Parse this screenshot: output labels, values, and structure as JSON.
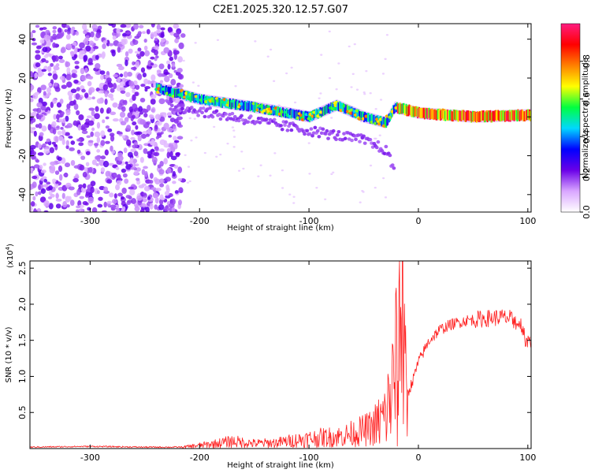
{
  "title": "C2E1.2025.320.12.57.G07",
  "chart_data": [
    {
      "type": "heatmap",
      "xlabel": "Height of straight line (km)",
      "ylabel": "Frequency (Hz)",
      "xlim": [
        -355,
        103
      ],
      "ylim": [
        -49,
        48
      ],
      "xticks": [
        -300,
        -200,
        -100,
        0,
        100
      ],
      "yticks": [
        -40,
        -20,
        0,
        20,
        40
      ],
      "colorbar": {
        "label": "Normalized spectral amplitude",
        "range": [
          0.0,
          1.0
        ],
        "ticks": [
          0.0,
          0.2,
          0.4,
          0.6,
          0.8
        ],
        "tick_labels": [
          "0.0",
          "0.2",
          "0.4",
          "0.6",
          "0.8"
        ],
        "colormap": [
          "#ffffff",
          "#d9a6ff",
          "#6a00e8",
          "#0000ff",
          "#00d8ff",
          "#00ff40",
          "#ffff00",
          "#ff8000",
          "#ff0000",
          "#ff1c80"
        ]
      },
      "features": [
        {
          "name": "noise region",
          "x_range": [
            -355,
            -215
          ],
          "freq_range": [
            -49,
            48
          ],
          "amplitude": 0.1
        },
        {
          "name": "doppler track",
          "points": [
            [
              -240,
              15
            ],
            [
              -200,
              9
            ],
            [
              -150,
              5
            ],
            [
              -100,
              0
            ],
            [
              -75,
              6
            ],
            [
              -50,
              0
            ],
            [
              -30,
              -3
            ],
            [
              -22,
              5
            ],
            [
              0,
              2
            ],
            [
              50,
              0
            ],
            [
              103,
              1
            ]
          ],
          "amplitude_range": [
            0.25,
            1.0
          ]
        },
        {
          "name": "low-frequency tail",
          "points": [
            [
              -230,
              6
            ],
            [
              -150,
              -2
            ],
            [
              -100,
              -7
            ],
            [
              -50,
              -12
            ],
            [
              -30,
              -17
            ],
            [
              -22,
              -27
            ]
          ],
          "amplitude": 0.15
        }
      ]
    },
    {
      "type": "line",
      "xlabel": "Height of straight line (km)",
      "ylabel": "SNR (10 * v/v)",
      "y_multiplier": "(x10 4)",
      "y_multiplier_base": "(x10",
      "y_multiplier_exp": "4",
      "y_multiplier_close": ")",
      "xlim": [
        -355,
        103
      ],
      "ylim": [
        0,
        2.6
      ],
      "xticks": [
        -300,
        -200,
        -100,
        0,
        100
      ],
      "yticks": [
        0.5,
        1.0,
        1.5,
        2.0,
        2.5
      ],
      "ytick_labels": [
        "0.5",
        "1.0",
        "1.5",
        "2.0",
        "2.5"
      ],
      "series": [
        {
          "name": "SNR",
          "color": "#ff2020",
          "x": [
            -355,
            -300,
            -250,
            -215,
            -190,
            -170,
            -150,
            -130,
            -110,
            -90,
            -70,
            -50,
            -40,
            -30,
            -24,
            -20,
            -16,
            -13,
            -10,
            -5,
            0,
            10,
            20,
            30,
            45,
            60,
            75,
            85,
            90,
            95,
            98,
            103
          ],
          "y": [
            0.02,
            0.03,
            0.02,
            0.02,
            0.06,
            0.1,
            0.07,
            0.08,
            0.12,
            0.15,
            0.17,
            0.25,
            0.3,
            0.45,
            0.8,
            1.2,
            1.3,
            1.0,
            0.75,
            0.95,
            1.2,
            1.5,
            1.65,
            1.72,
            1.78,
            1.8,
            1.82,
            1.8,
            1.75,
            1.7,
            1.5,
            1.5
          ]
        }
      ]
    }
  ]
}
